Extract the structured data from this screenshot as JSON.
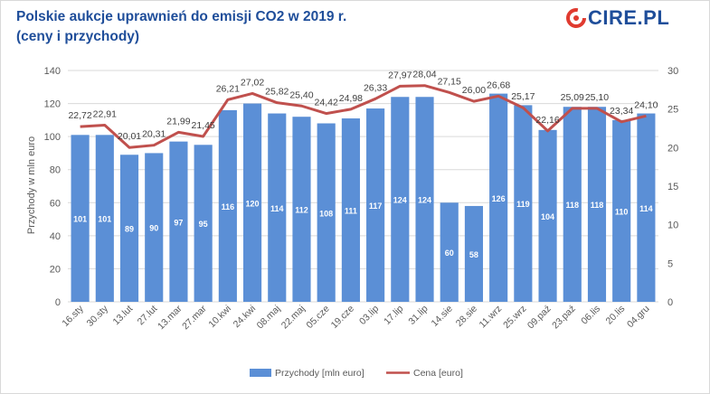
{
  "header": {
    "title_line1": "Polskie aukcje uprawnień do emisji CO2 w 2019 r.",
    "title_line2": "(ceny i przychody)",
    "logo_text": "CIRE.PL"
  },
  "colors": {
    "bar": "#5b8fd6",
    "line": "#c0504d",
    "title": "#1f4e9a",
    "axis_text": "#595959",
    "grid": "#d9d9d9"
  },
  "chart_data": {
    "type": "bar",
    "categories": [
      "16.sty",
      "30.sty",
      "13.lut",
      "27.lut",
      "13.mar",
      "27.mar",
      "10.kwi",
      "24.kwi",
      "08.maj",
      "22.maj",
      "05.cze",
      "19.cze",
      "03.lip",
      "17.lip",
      "31.lip",
      "14.sie",
      "28.sie",
      "11.wrz",
      "25.wrz",
      "09.paź",
      "23.paź",
      "06.lis",
      "20.lis",
      "04.gru"
    ],
    "series": [
      {
        "name": "Przychody [mln euro]",
        "type": "bar",
        "axis": "left",
        "values": [
          101,
          101,
          89,
          90,
          97,
          95,
          116,
          120,
          114,
          112,
          108,
          111,
          117,
          124,
          124,
          60,
          58,
          126,
          119,
          104,
          118,
          118,
          110,
          114
        ],
        "labels": [
          "101",
          "101",
          "89",
          "90",
          "97",
          "95",
          "116",
          "120",
          "114",
          "112",
          "108",
          "111",
          "117",
          "124",
          "124",
          "60",
          "58",
          "126",
          "119",
          "104",
          "118",
          "118",
          "110",
          "114"
        ]
      },
      {
        "name": "Cena [euro]",
        "type": "line",
        "axis": "right",
        "values": [
          22.72,
          22.91,
          20.01,
          20.31,
          21.99,
          21.45,
          26.21,
          27.02,
          25.82,
          25.4,
          24.42,
          24.98,
          26.33,
          27.97,
          28.04,
          27.15,
          26.0,
          26.68,
          25.17,
          22.16,
          25.09,
          25.1,
          23.34,
          24.1
        ],
        "labels": [
          "22,72",
          "22,91",
          "20,01",
          "20,31",
          "21,99",
          "21,45",
          "26,21",
          "27,02",
          "25,82",
          "25,40",
          "24,42",
          "24,98",
          "26,33",
          "27,97",
          "28,04",
          "27,15",
          "26,00",
          "26,68",
          "25,17",
          "22,16",
          "25,09",
          "25,10",
          "23,34",
          "24,10"
        ]
      }
    ],
    "ylabel": "Przychody w mln euro",
    "ylim": [
      0,
      140
    ],
    "y_ticks": [
      "0",
      "20",
      "40",
      "60",
      "80",
      "100",
      "120",
      "140"
    ],
    "y2lim": [
      0,
      30
    ],
    "y2_ticks": [
      "0",
      "5",
      "10",
      "15",
      "20",
      "25",
      "30"
    ],
    "grid": true,
    "legend_position": "bottom"
  }
}
